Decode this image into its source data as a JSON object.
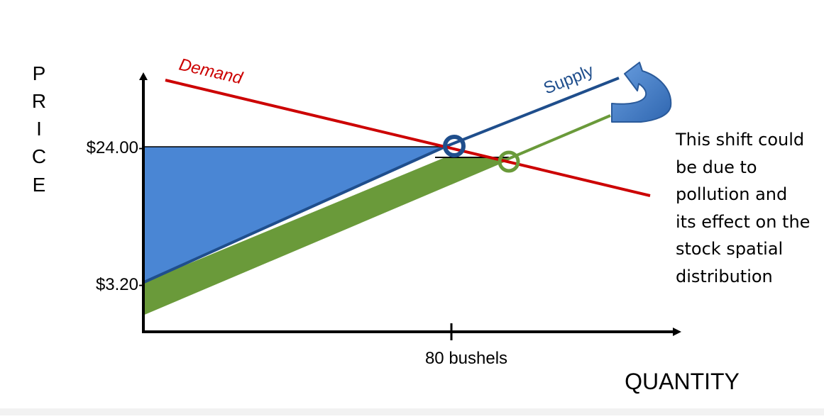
{
  "chart_data": {
    "type": "line",
    "title": "",
    "xlabel": "QUANTITY",
    "ylabel": "PRICE",
    "ylabel_letters": [
      "P",
      "R",
      "I",
      "C",
      "E"
    ],
    "y_ticks": [
      {
        "label": "$24.00-",
        "value": 24.0
      },
      {
        "label": "$3.20-",
        "value": 3.2
      }
    ],
    "x_ticks": [
      {
        "label": "80 bushels",
        "value": 80
      }
    ],
    "series": [
      {
        "name": "Demand",
        "color": "#cc0000",
        "points": [
          [
            12,
            33.5
          ],
          [
            136,
            3.5
          ]
        ]
      },
      {
        "name": "Supply",
        "color": "#1f4e8c",
        "points": [
          [
            0,
            3.2
          ],
          [
            80,
            24.0
          ],
          [
            127,
            34.5
          ]
        ]
      },
      {
        "name": "",
        "color": "#6a9a3a",
        "points": [
          [
            0,
            -1.4
          ],
          [
            97,
            22.5
          ],
          [
            124,
            29.0
          ]
        ]
      }
    ],
    "equilibria": [
      {
        "series": "Supply",
        "x": 80,
        "y": 24.0,
        "color": "#1f4e8c"
      },
      {
        "series": "shifted",
        "x": 97,
        "y": 22.5,
        "color": "#6a9a3a"
      }
    ],
    "shaded_regions": [
      {
        "fill": "#4a86d4",
        "between": "Supply and price $24.00"
      },
      {
        "fill": "#6a9a3a",
        "between": "Supply and shifted supply"
      }
    ],
    "colors": {
      "demand": "#cc0000",
      "supply": "#1f4e8c",
      "shifted": "#6a9a3a",
      "blue_fill": "#4a86d4",
      "green_fill": "#6a9a3a",
      "arrow": "#4a86d4"
    },
    "arrow_icon": "curved-shift-arrow-icon"
  },
  "annotation": {
    "lines": [
      "This shift could",
      "be due to",
      "pollution and",
      "its effect on the",
      "stock spatial",
      "distribution"
    ]
  }
}
